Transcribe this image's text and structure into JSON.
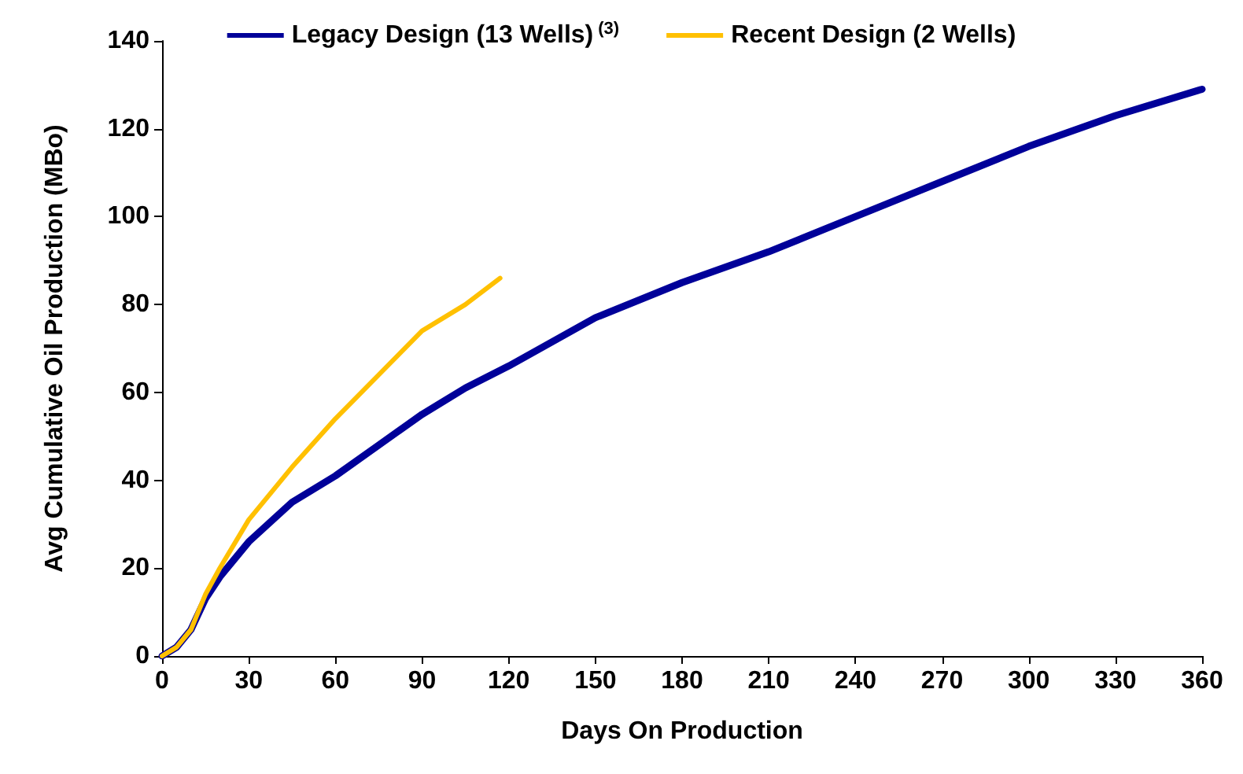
{
  "chart_data": {
    "type": "line",
    "xlabel": "Days On Production",
    "ylabel": "Avg Cumulative Oil Production (MBo)",
    "xlim": [
      0,
      360
    ],
    "xticks": [
      0,
      30,
      60,
      90,
      120,
      150,
      180,
      210,
      240,
      270,
      300,
      330,
      360
    ],
    "ylim": [
      0,
      140
    ],
    "yticks": [
      0,
      20,
      40,
      60,
      80,
      100,
      120,
      140
    ],
    "grid": false,
    "legend": "top",
    "marker": "none",
    "line_style": "solid",
    "series": [
      {
        "name": "Legacy Design (13 Wells)$^{(3)}$",
        "color": "#000099",
        "x": [
          0,
          5,
          10,
          15,
          20,
          30,
          45,
          60,
          75,
          90,
          105,
          120,
          150,
          180,
          210,
          240,
          270,
          300,
          330,
          360
        ],
        "values": [
          0,
          2,
          6,
          13,
          18,
          26,
          35,
          41,
          48,
          55,
          61,
          66,
          77,
          85,
          92,
          100,
          108,
          116,
          123,
          129
        ]
      },
      {
        "name": "Recent Design (2 Wells)",
        "color": "#ffc000",
        "x": [
          0,
          5,
          10,
          15,
          20,
          30,
          45,
          60,
          75,
          90,
          105,
          117
        ],
        "values": [
          0,
          2,
          6,
          14,
          20,
          31,
          43,
          54,
          64,
          74,
          80,
          86
        ]
      }
    ]
  }
}
